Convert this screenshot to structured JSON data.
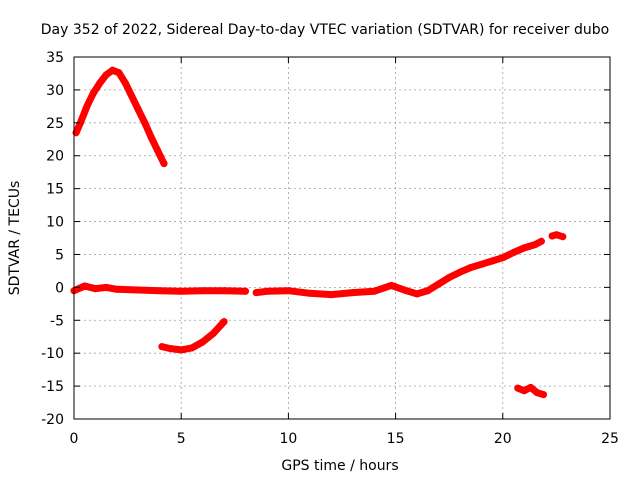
{
  "chart_data": {
    "type": "scatter",
    "title": "Day 352 of 2022, Sidereal Day-to-day VTEC variation (SDTVAR) for receiver dubo",
    "xlabel": "GPS time / hours",
    "ylabel": "SDTVAR / TECUs",
    "xlim": [
      0,
      25
    ],
    "ylim": [
      -20,
      35
    ],
    "xticks": [
      0,
      5,
      10,
      15,
      20,
      25
    ],
    "yticks": [
      -20,
      -15,
      -10,
      -5,
      0,
      5,
      10,
      15,
      20,
      25,
      30,
      35
    ],
    "grid": true,
    "color": "#ff0000",
    "series": [
      {
        "name": "segment-1-rise",
        "x": [
          0.1,
          0.3,
          0.6,
          0.9,
          1.2,
          1.5,
          1.8,
          2.1,
          2.4,
          2.7,
          3.0,
          3.3,
          3.6,
          3.9,
          4.2
        ],
        "y": [
          23.5,
          25.0,
          27.5,
          29.5,
          31.0,
          32.3,
          33.0,
          32.6,
          31.0,
          29.0,
          27.0,
          25.0,
          22.8,
          20.8,
          18.8
        ]
      },
      {
        "name": "segment-2-baseline",
        "x": [
          0.0,
          0.5,
          1.0,
          1.5,
          2.0,
          3.0,
          4.0,
          5.0,
          6.0,
          7.0,
          8.0
        ],
        "y": [
          -0.5,
          0.2,
          -0.2,
          0.0,
          -0.3,
          -0.4,
          -0.5,
          -0.6,
          -0.5,
          -0.5,
          -0.6
        ]
      },
      {
        "name": "segment-3-dip",
        "x": [
          4.1,
          4.5,
          5.0,
          5.5,
          6.0,
          6.5,
          7.0
        ],
        "y": [
          -9.0,
          -9.3,
          -9.5,
          -9.2,
          -8.3,
          -7.0,
          -5.2
        ]
      },
      {
        "name": "segment-4-baseline",
        "x": [
          8.5,
          9.0,
          10.0,
          11.0,
          12.0,
          13.0,
          14.0,
          14.8,
          15.5,
          16.0,
          16.5
        ],
        "y": [
          -0.8,
          -0.6,
          -0.5,
          -0.9,
          -1.1,
          -0.8,
          -0.6,
          0.3,
          -0.5,
          -1.0,
          -0.5
        ]
      },
      {
        "name": "segment-5-rise",
        "x": [
          16.5,
          17.0,
          17.5,
          18.0,
          18.5,
          19.0,
          19.5,
          20.0,
          20.5,
          21.0,
          21.5,
          21.8
        ],
        "y": [
          -0.5,
          0.5,
          1.5,
          2.3,
          3.0,
          3.5,
          4.0,
          4.5,
          5.3,
          6.0,
          6.5,
          7.0
        ]
      },
      {
        "name": "segment-6-cluster",
        "x": [
          22.3,
          22.5,
          22.8
        ],
        "y": [
          7.8,
          8.0,
          7.7
        ]
      },
      {
        "name": "segment-7-low",
        "x": [
          20.7,
          21.0,
          21.3,
          21.6,
          21.9
        ],
        "y": [
          -15.3,
          -15.7,
          -15.2,
          -16.0,
          -16.3
        ]
      }
    ]
  }
}
